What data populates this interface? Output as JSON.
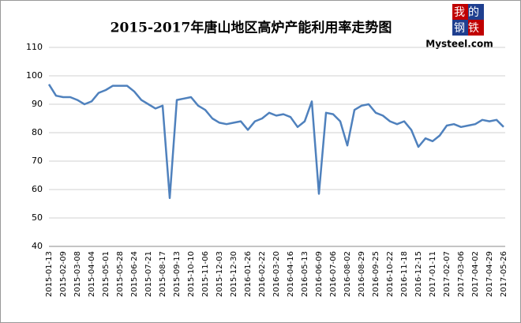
{
  "chart_data": {
    "type": "line",
    "title": "2015-2017年唐山地区高炉产能利用率走势图",
    "logo": {
      "top": "我的",
      "bottom": "钢铁",
      "site": "Mysteel.com"
    },
    "categories": [
      "2015-01-13",
      null,
      "2015-02-09",
      null,
      "2015-03-08",
      null,
      "2015-04-04",
      null,
      "2015-05-01",
      null,
      "2015-05-28",
      null,
      "2015-06-24",
      null,
      "2015-07-21",
      null,
      "2015-08-17",
      null,
      "2015-09-13",
      null,
      "2015-10-10",
      null,
      "2015-11-06",
      null,
      "2015-12-03",
      null,
      "2015-12-30",
      null,
      "2016-01-26",
      null,
      "2016-02-22",
      null,
      "2016-03-20",
      null,
      "2016-04-16",
      null,
      "2016-05-13",
      null,
      "2016-06-09",
      null,
      "2016-07-06",
      null,
      "2016-08-02",
      null,
      "2016-08-29",
      null,
      "2016-09-25",
      null,
      "2016-10-22",
      null,
      "2016-11-18",
      null,
      "2016-12-15",
      null,
      "2017-01-11",
      null,
      "2017-02-07",
      null,
      "2017-03-06",
      null,
      "2017-04-02",
      null,
      "2017-04-29",
      null,
      "2017-05-26"
    ],
    "series": [
      {
        "color": "#4f81bd",
        "values": [
          97,
          93,
          92.5,
          92.5,
          91.5,
          90,
          91,
          94,
          95,
          96.5,
          96.5,
          96.5,
          94.5,
          91.5,
          90,
          88.5,
          89.5,
          57,
          91.5,
          92,
          92.5,
          89.5,
          88,
          85,
          83.5,
          83,
          83.5,
          84,
          81,
          84,
          85,
          87,
          86,
          86.5,
          85.5,
          82,
          84,
          91,
          58.5,
          87,
          86.5,
          84,
          75.5,
          88,
          89.5,
          90,
          87,
          86,
          84,
          83,
          84,
          81,
          75,
          78,
          77,
          79,
          82.5,
          83,
          82,
          82.5,
          83,
          84.5,
          84,
          84.5,
          82
        ]
      }
    ],
    "ylim": [
      40,
      110
    ],
    "yticks": [
      40,
      50,
      60,
      70,
      80,
      90,
      100,
      110
    ],
    "grid": true
  }
}
